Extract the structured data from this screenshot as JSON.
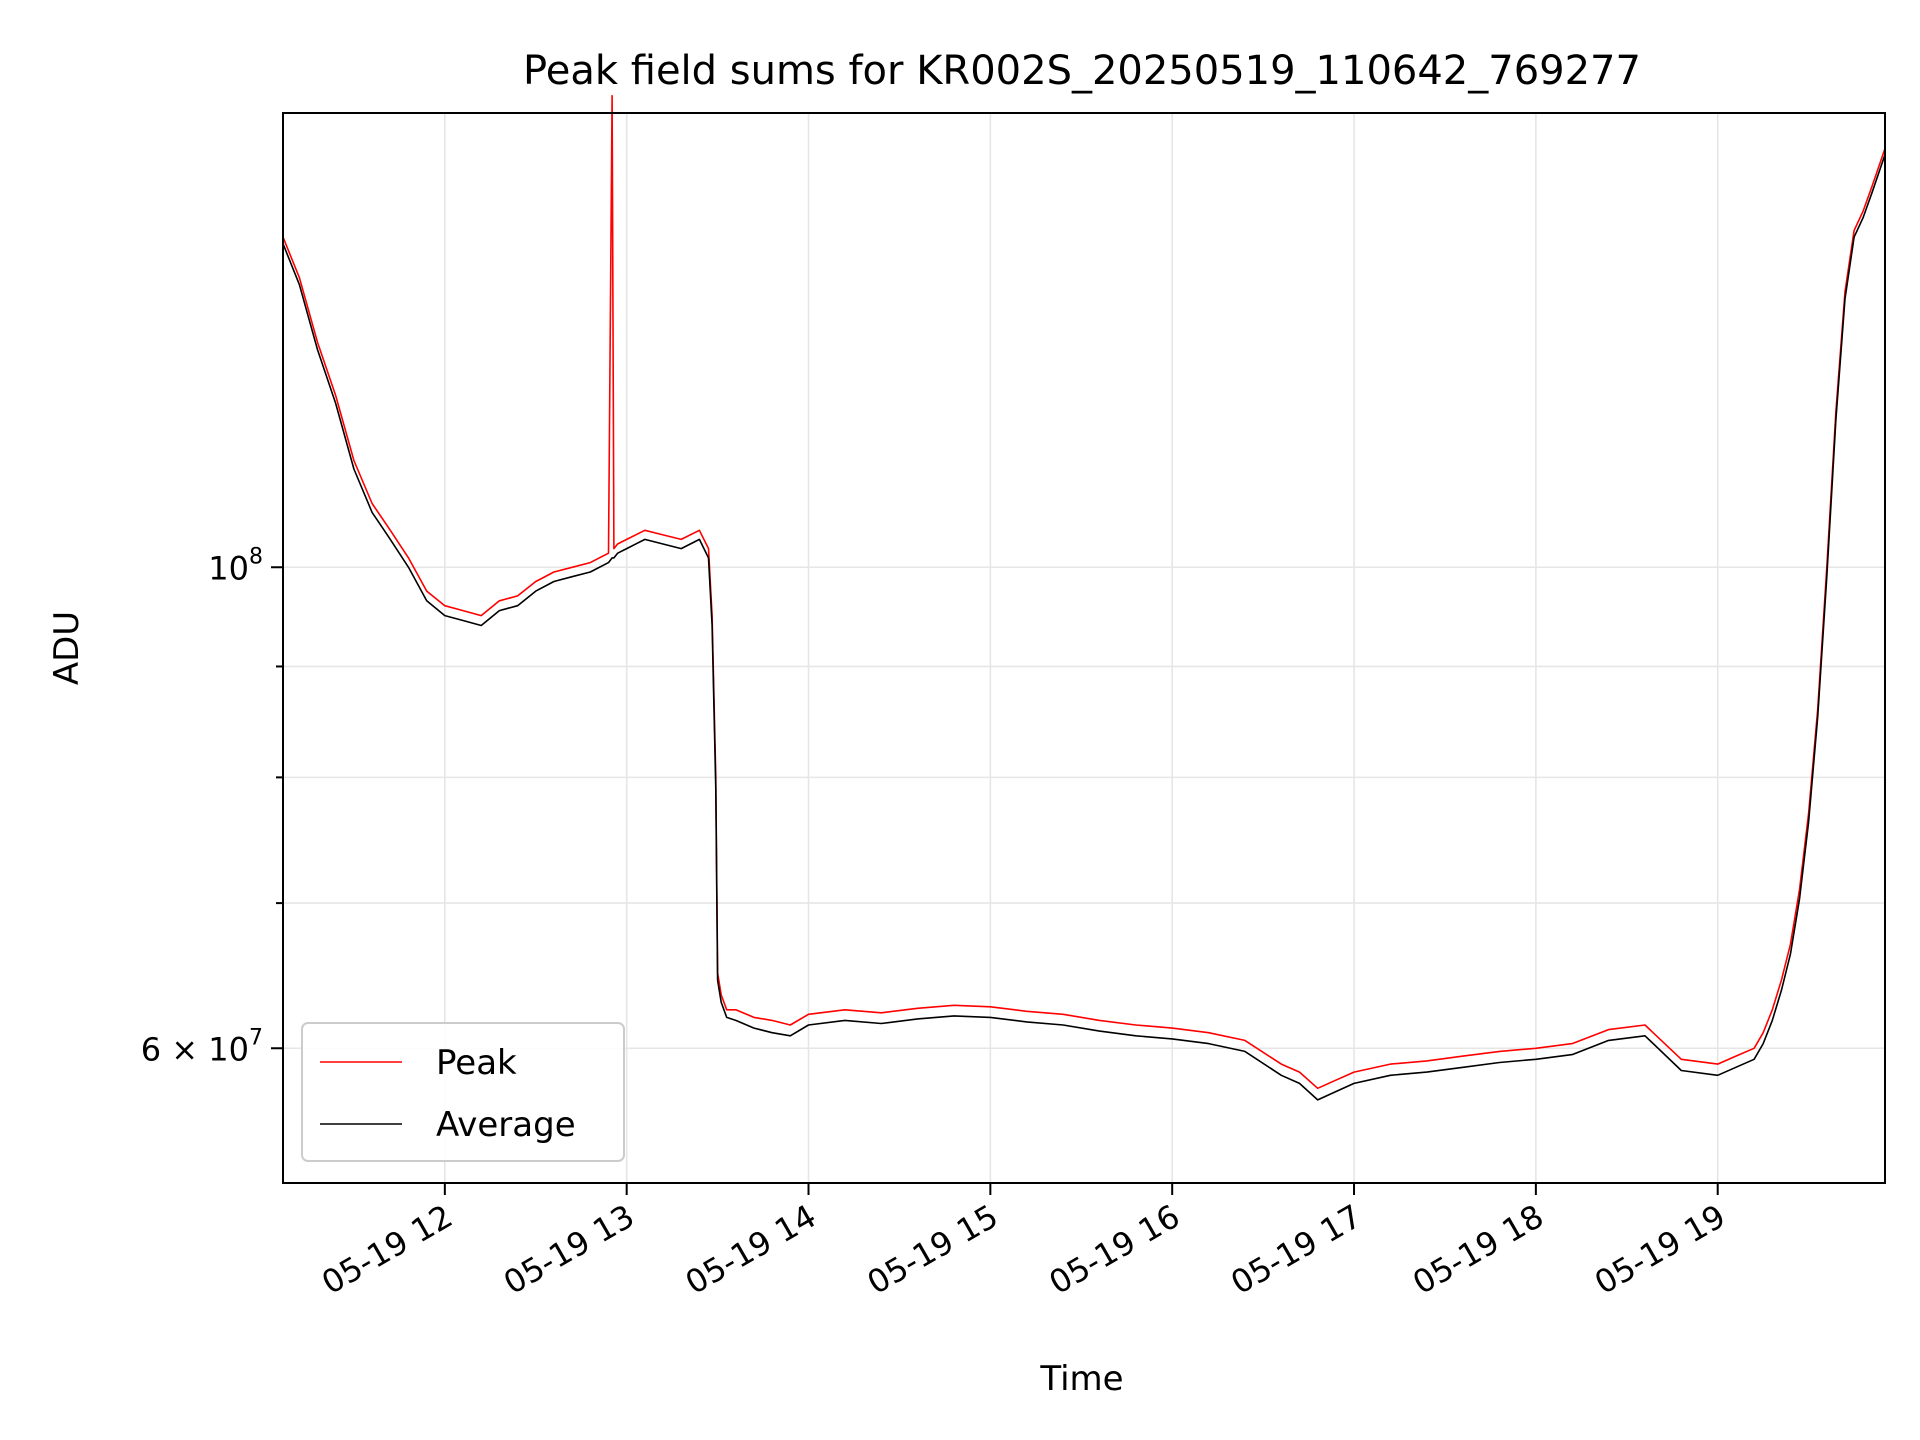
{
  "chart_data": {
    "type": "line",
    "title": "Peak field sums for KR002S_20250519_110642_769277",
    "xlabel": "Time",
    "ylabel": "ADU",
    "x_unit": "hours on 2025-05-19",
    "xlim": [
      11.11,
      19.92
    ],
    "ylim": [
      52000000,
      162000000
    ],
    "y_scale": "log",
    "grid": true,
    "legend": "lower-left",
    "x_ticks": [
      {
        "value": 12,
        "label": "05-19 12"
      },
      {
        "value": 13,
        "label": "05-19 13"
      },
      {
        "value": 14,
        "label": "05-19 14"
      },
      {
        "value": 15,
        "label": "05-19 15"
      },
      {
        "value": 16,
        "label": "05-19 16"
      },
      {
        "value": 17,
        "label": "05-19 17"
      },
      {
        "value": 18,
        "label": "05-19 18"
      },
      {
        "value": 19,
        "label": "05-19 19"
      }
    ],
    "y_major_ticks": [
      {
        "value": 60000000,
        "base": "6 × 10",
        "exp": "7"
      },
      {
        "value": 100000000,
        "base": "10",
        "exp": "8"
      }
    ],
    "y_minor_ticks": [
      70000000,
      80000000,
      90000000
    ],
    "series": [
      {
        "name": "Peak",
        "color": "#ff0000",
        "x": [
          11.11,
          11.2,
          11.3,
          11.4,
          11.5,
          11.6,
          11.7,
          11.8,
          11.9,
          12.0,
          12.1,
          12.2,
          12.3,
          12.4,
          12.5,
          12.6,
          12.7,
          12.8,
          12.9,
          12.92,
          12.93,
          12.95,
          13.0,
          13.1,
          13.2,
          13.3,
          13.4,
          13.45,
          13.47,
          13.49,
          13.5,
          13.52,
          13.55,
          13.6,
          13.7,
          13.8,
          13.9,
          14.0,
          14.2,
          14.4,
          14.6,
          14.8,
          15.0,
          15.2,
          15.4,
          15.6,
          15.8,
          16.0,
          16.2,
          16.4,
          16.6,
          16.7,
          16.8,
          16.9,
          17.0,
          17.2,
          17.4,
          17.6,
          17.8,
          18.0,
          18.2,
          18.4,
          18.6,
          18.8,
          19.0,
          19.1,
          19.2,
          19.25,
          19.3,
          19.35,
          19.4,
          19.45,
          19.5,
          19.55,
          19.6,
          19.65,
          19.7,
          19.75,
          19.8,
          19.85,
          19.92
        ],
        "y": [
          142000000,
          136000000,
          127000000,
          120000000,
          112000000,
          107000000,
          104000000,
          101000000,
          97500000,
          96000000,
          95500000,
          95000000,
          96500000,
          97000000,
          98500000,
          99500000,
          100000000,
          100500000,
          101500000,
          165000000,
          102000000,
          102500000,
          103000000,
          104000000,
          103500000,
          103000000,
          104000000,
          102000000,
          95000000,
          80000000,
          65000000,
          63500000,
          62500000,
          62500000,
          62000000,
          61800000,
          61500000,
          62200000,
          62500000,
          62300000,
          62600000,
          62800000,
          62700000,
          62400000,
          62200000,
          61800000,
          61500000,
          61300000,
          61000000,
          60500000,
          59000000,
          58500000,
          57500000,
          58000000,
          58500000,
          59000000,
          59200000,
          59500000,
          59800000,
          60000000,
          60300000,
          61200000,
          61500000,
          59300000,
          59000000,
          59500000,
          60000000,
          61000000,
          62500000,
          64500000,
          67000000,
          71000000,
          77000000,
          86000000,
          100000000,
          118000000,
          134000000,
          143000000,
          146000000,
          150000000,
          156000000
        ]
      },
      {
        "name": "Average",
        "color": "#000000",
        "x": [
          11.11,
          11.2,
          11.3,
          11.4,
          11.5,
          11.6,
          11.7,
          11.8,
          11.9,
          12.0,
          12.1,
          12.2,
          12.3,
          12.4,
          12.5,
          12.6,
          12.7,
          12.8,
          12.9,
          12.92,
          12.93,
          12.95,
          13.0,
          13.1,
          13.2,
          13.3,
          13.4,
          13.45,
          13.47,
          13.49,
          13.5,
          13.52,
          13.55,
          13.6,
          13.7,
          13.8,
          13.9,
          14.0,
          14.2,
          14.4,
          14.6,
          14.8,
          15.0,
          15.2,
          15.4,
          15.6,
          15.8,
          16.0,
          16.2,
          16.4,
          16.6,
          16.7,
          16.8,
          16.9,
          17.0,
          17.2,
          17.4,
          17.6,
          17.8,
          18.0,
          18.2,
          18.4,
          18.6,
          18.8,
          19.0,
          19.1,
          19.2,
          19.25,
          19.3,
          19.35,
          19.4,
          19.45,
          19.5,
          19.55,
          19.6,
          19.65,
          19.7,
          19.75,
          19.8,
          19.85,
          19.92
        ],
        "y": [
          141000000,
          135000000,
          126000000,
          119000000,
          111000000,
          106000000,
          103000000,
          100000000,
          96500000,
          95000000,
          94500000,
          94000000,
          95500000,
          96000000,
          97500000,
          98500000,
          99000000,
          99500000,
          100500000,
          101000000,
          101000000,
          101500000,
          102000000,
          103000000,
          102500000,
          102000000,
          103000000,
          101000000,
          94000000,
          79000000,
          64500000,
          63000000,
          62000000,
          61800000,
          61300000,
          61000000,
          60800000,
          61500000,
          61800000,
          61600000,
          61900000,
          62100000,
          62000000,
          61700000,
          61500000,
          61100000,
          60800000,
          60600000,
          60300000,
          59800000,
          58300000,
          57800000,
          56800000,
          57300000,
          57800000,
          58300000,
          58500000,
          58800000,
          59100000,
          59300000,
          59600000,
          60500000,
          60800000,
          58600000,
          58300000,
          58800000,
          59300000,
          60300000,
          61800000,
          63800000,
          66300000,
          70300000,
          76300000,
          85300000,
          99000000,
          117000000,
          133000000,
          142000000,
          145000000,
          149000000,
          155000000
        ]
      }
    ]
  }
}
